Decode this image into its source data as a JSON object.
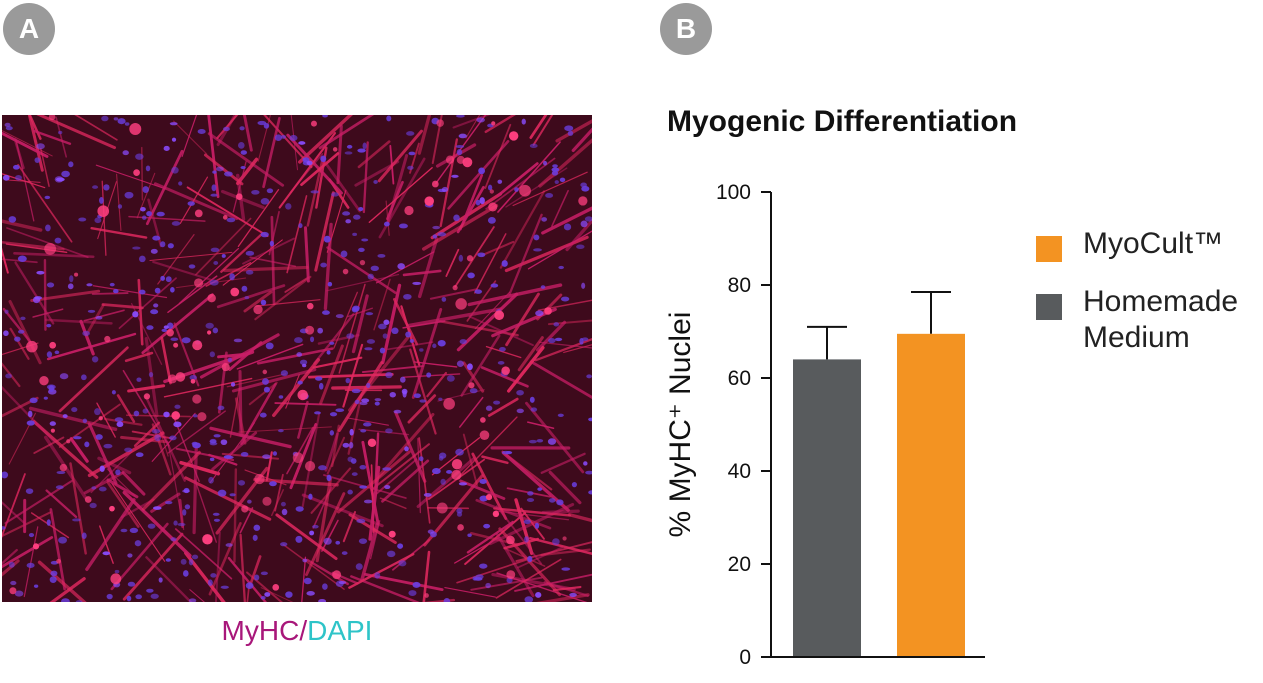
{
  "panels": {
    "a_label": "A",
    "b_label": "B"
  },
  "image_caption": {
    "stain1": "MyHC",
    "separator": "/",
    "stain2": "DAPI"
  },
  "colors": {
    "myocult": "#f39322",
    "homemade": "#585b5d",
    "stain_myhc": "#a8177a",
    "stain_dapi": "#2ec4c8"
  },
  "chart_data": {
    "type": "bar",
    "title": "Myogenic Differentiation",
    "ylabel": "% MyHC⁺ Nuclei",
    "xlabel": "",
    "ylim": [
      0,
      100
    ],
    "yticks": [
      0,
      20,
      40,
      60,
      80,
      100
    ],
    "categories": [
      "Homemade Medium",
      "MyoCult™"
    ],
    "values": [
      64,
      69.5
    ],
    "errors": [
      7,
      9
    ],
    "bar_colors": [
      "#585b5d",
      "#f39322"
    ],
    "legend": [
      {
        "name": "MyoCult™",
        "color": "#f39322"
      },
      {
        "name": "Homemade Medium",
        "color": "#585b5d"
      }
    ],
    "legend_position": "right",
    "grid": false
  }
}
